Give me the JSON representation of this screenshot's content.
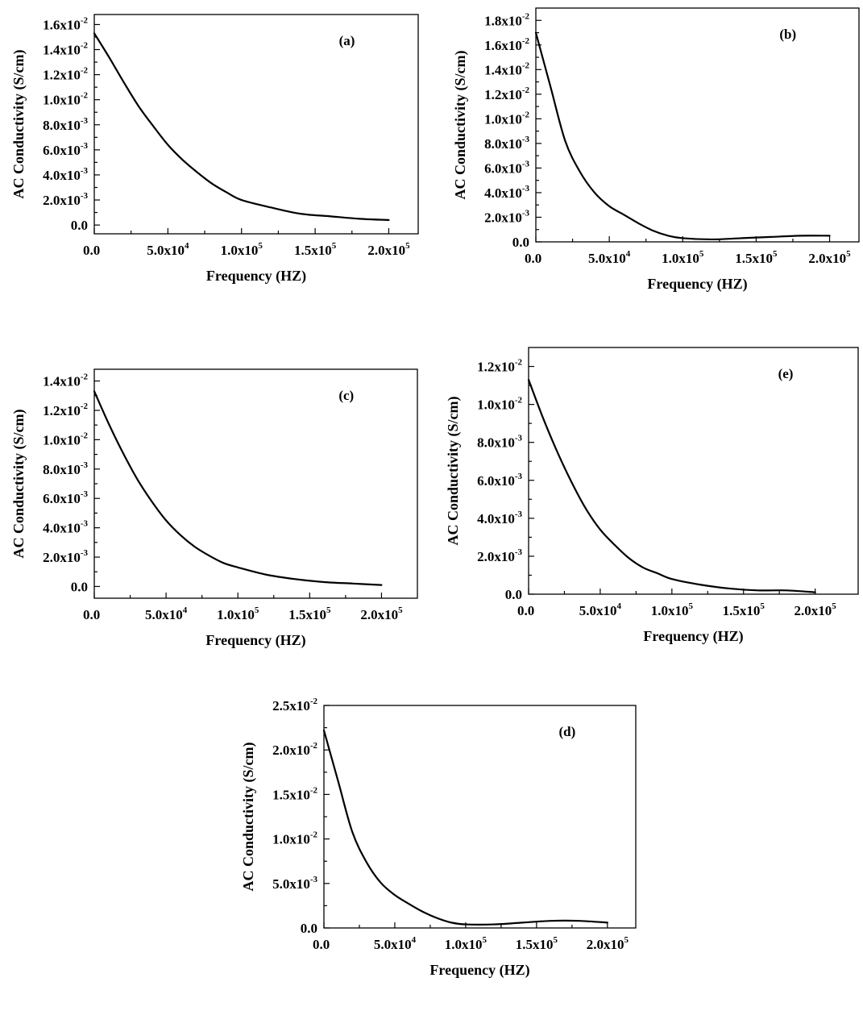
{
  "chart_data": [
    {
      "id": "a",
      "type": "line",
      "label": "(a)",
      "xlabel": "Frequency (HZ)",
      "ylabel": "AC Conductivity (S/cm)",
      "xlim": [
        0,
        220000
      ],
      "ylim": [
        -0.0007,
        0.0168
      ],
      "xticks": [
        {
          "value": 0,
          "mantissa": "0.0",
          "exp": ""
        },
        {
          "value": 50000,
          "mantissa": "5.0x10",
          "exp": "4"
        },
        {
          "value": 100000,
          "mantissa": "1.0x10",
          "exp": "5"
        },
        {
          "value": 150000,
          "mantissa": "1.5x10",
          "exp": "5"
        },
        {
          "value": 200000,
          "mantissa": "2.0x10",
          "exp": "5"
        }
      ],
      "yticks": [
        {
          "value": 0,
          "mantissa": "0.0",
          "exp": ""
        },
        {
          "value": 0.002,
          "mantissa": "2.0x10",
          "exp": "-3"
        },
        {
          "value": 0.004,
          "mantissa": "4.0x10",
          "exp": "-3"
        },
        {
          "value": 0.006,
          "mantissa": "6.0x10",
          "exp": "-3"
        },
        {
          "value": 0.008,
          "mantissa": "8.0x10",
          "exp": "-3"
        },
        {
          "value": 0.01,
          "mantissa": "1.0x10",
          "exp": "-2"
        },
        {
          "value": 0.012,
          "mantissa": "1.2x10",
          "exp": "-2"
        },
        {
          "value": 0.014,
          "mantissa": "1.4x10",
          "exp": "-2"
        },
        {
          "value": 0.016,
          "mantissa": "1.6x10",
          "exp": "-2"
        }
      ],
      "x": [
        0,
        10000,
        20000,
        30000,
        40000,
        50000,
        60000,
        70000,
        80000,
        90000,
        100000,
        120000,
        140000,
        160000,
        180000,
        200000
      ],
      "y": [
        0.0153,
        0.0134,
        0.0114,
        0.0095,
        0.0079,
        0.0064,
        0.0052,
        0.0042,
        0.0033,
        0.0026,
        0.002,
        0.0014,
        0.0009,
        0.0007,
        0.0005,
        0.0004
      ]
    },
    {
      "id": "b",
      "type": "line",
      "label": "(b)",
      "xlabel": "Frequency (HZ)",
      "ylabel": "AC Conductivity (S/cm)",
      "xlim": [
        0,
        220000
      ],
      "ylim": [
        0,
        0.019
      ],
      "xticks": [
        {
          "value": 0,
          "mantissa": "0.0",
          "exp": ""
        },
        {
          "value": 50000,
          "mantissa": "5.0x10",
          "exp": "4"
        },
        {
          "value": 100000,
          "mantissa": "1.0x10",
          "exp": "5"
        },
        {
          "value": 150000,
          "mantissa": "1.5x10",
          "exp": "5"
        },
        {
          "value": 200000,
          "mantissa": "2.0x10",
          "exp": "5"
        }
      ],
      "yticks": [
        {
          "value": 0,
          "mantissa": "0.0",
          "exp": ""
        },
        {
          "value": 0.002,
          "mantissa": "2.0x10",
          "exp": "-3"
        },
        {
          "value": 0.004,
          "mantissa": "4.0x10",
          "exp": "-3"
        },
        {
          "value": 0.006,
          "mantissa": "6.0x10",
          "exp": "-3"
        },
        {
          "value": 0.008,
          "mantissa": "8.0x10",
          "exp": "-3"
        },
        {
          "value": 0.01,
          "mantissa": "1.0x10",
          "exp": "-2"
        },
        {
          "value": 0.012,
          "mantissa": "1.2x10",
          "exp": "-2"
        },
        {
          "value": 0.014,
          "mantissa": "1.4x10",
          "exp": "-2"
        },
        {
          "value": 0.016,
          "mantissa": "1.6x10",
          "exp": "-2"
        },
        {
          "value": 0.018,
          "mantissa": "1.8x10",
          "exp": "-2"
        }
      ],
      "x": [
        0,
        10000,
        20000,
        30000,
        40000,
        50000,
        60000,
        70000,
        80000,
        90000,
        100000,
        120000,
        140000,
        160000,
        180000,
        200000
      ],
      "y": [
        0.017,
        0.0126,
        0.0082,
        0.0057,
        0.004,
        0.0029,
        0.0022,
        0.0015,
        0.0009,
        0.0005,
        0.0003,
        0.0002,
        0.0003,
        0.0004,
        0.0005,
        0.0005
      ]
    },
    {
      "id": "c",
      "type": "line",
      "label": "(c)",
      "xlabel": "Frequency (HZ)",
      "ylabel": "AC Conductivity (S/cm)",
      "xlim": [
        0,
        225000
      ],
      "ylim": [
        -0.0008,
        0.0148
      ],
      "xticks": [
        {
          "value": 0,
          "mantissa": "0.0",
          "exp": ""
        },
        {
          "value": 50000,
          "mantissa": "5.0x10",
          "exp": "4"
        },
        {
          "value": 100000,
          "mantissa": "1.0x10",
          "exp": "5"
        },
        {
          "value": 150000,
          "mantissa": "1.5x10",
          "exp": "5"
        },
        {
          "value": 200000,
          "mantissa": "2.0x10",
          "exp": "5"
        }
      ],
      "yticks": [
        {
          "value": 0,
          "mantissa": "0.0",
          "exp": ""
        },
        {
          "value": 0.002,
          "mantissa": "2.0x10",
          "exp": "-3"
        },
        {
          "value": 0.004,
          "mantissa": "4.0x10",
          "exp": "-3"
        },
        {
          "value": 0.006,
          "mantissa": "6.0x10",
          "exp": "-3"
        },
        {
          "value": 0.008,
          "mantissa": "8.0x10",
          "exp": "-3"
        },
        {
          "value": 0.01,
          "mantissa": "1.0x10",
          "exp": "-2"
        },
        {
          "value": 0.012,
          "mantissa": "1.2x10",
          "exp": "-2"
        },
        {
          "value": 0.014,
          "mantissa": "1.4x10",
          "exp": "-2"
        }
      ],
      "x": [
        0,
        10000,
        20000,
        30000,
        40000,
        50000,
        60000,
        70000,
        80000,
        90000,
        100000,
        120000,
        140000,
        160000,
        180000,
        200000
      ],
      "y": [
        0.0133,
        0.0111,
        0.0091,
        0.0073,
        0.0058,
        0.0045,
        0.0035,
        0.0027,
        0.0021,
        0.0016,
        0.0013,
        0.0008,
        0.0005,
        0.0003,
        0.0002,
        0.0001
      ]
    },
    {
      "id": "e",
      "type": "line",
      "label": "(e)",
      "xlabel": "Frequency (HZ)",
      "ylabel": "AC Conductivity (S/cm)",
      "xlim": [
        0,
        230000
      ],
      "ylim": [
        0,
        0.013
      ],
      "xticks": [
        {
          "value": 0,
          "mantissa": "0.0",
          "exp": ""
        },
        {
          "value": 50000,
          "mantissa": "5.0x10",
          "exp": "4"
        },
        {
          "value": 100000,
          "mantissa": "1.0x10",
          "exp": "5"
        },
        {
          "value": 150000,
          "mantissa": "1.5x10",
          "exp": "5"
        },
        {
          "value": 200000,
          "mantissa": "2.0x10",
          "exp": "5"
        }
      ],
      "yticks": [
        {
          "value": 0,
          "mantissa": "0.0",
          "exp": ""
        },
        {
          "value": 0.002,
          "mantissa": "2.0x10",
          "exp": "-3"
        },
        {
          "value": 0.004,
          "mantissa": "4.0x10",
          "exp": "-3"
        },
        {
          "value": 0.006,
          "mantissa": "6.0x10",
          "exp": "-3"
        },
        {
          "value": 0.008,
          "mantissa": "8.0x10",
          "exp": "-3"
        },
        {
          "value": 0.01,
          "mantissa": "1.0x10",
          "exp": "-2"
        },
        {
          "value": 0.012,
          "mantissa": "1.2x10",
          "exp": "-2"
        }
      ],
      "x": [
        0,
        10000,
        20000,
        30000,
        40000,
        50000,
        60000,
        70000,
        80000,
        90000,
        100000,
        120000,
        140000,
        160000,
        180000,
        200000
      ],
      "y": [
        0.0113,
        0.0093,
        0.0075,
        0.0059,
        0.0045,
        0.0034,
        0.0026,
        0.0019,
        0.0014,
        0.0011,
        0.0008,
        0.0005,
        0.0003,
        0.0002,
        0.0002,
        0.0001
      ]
    },
    {
      "id": "d",
      "type": "line",
      "label": "(d)",
      "xlabel": "Frequency (HZ)",
      "ylabel": "AC Conductivity (S/cm)",
      "xlim": [
        0,
        220000
      ],
      "ylim": [
        0,
        0.025
      ],
      "xticks": [
        {
          "value": 0,
          "mantissa": "0.0",
          "exp": ""
        },
        {
          "value": 50000,
          "mantissa": "5.0x10",
          "exp": "4"
        },
        {
          "value": 100000,
          "mantissa": "1.0x10",
          "exp": "5"
        },
        {
          "value": 150000,
          "mantissa": "1.5x10",
          "exp": "5"
        },
        {
          "value": 200000,
          "mantissa": "2.0x10",
          "exp": "5"
        }
      ],
      "yticks": [
        {
          "value": 0,
          "mantissa": "0.0",
          "exp": ""
        },
        {
          "value": 0.005,
          "mantissa": "5.0x10",
          "exp": "-3"
        },
        {
          "value": 0.01,
          "mantissa": "1.0x10",
          "exp": "-2"
        },
        {
          "value": 0.015,
          "mantissa": "1.5x10",
          "exp": "-2"
        },
        {
          "value": 0.02,
          "mantissa": "2.0x10",
          "exp": "-2"
        },
        {
          "value": 0.025,
          "mantissa": "2.5x10",
          "exp": "-2"
        }
      ],
      "x": [
        0,
        10000,
        20000,
        30000,
        40000,
        50000,
        60000,
        70000,
        80000,
        90000,
        100000,
        120000,
        140000,
        160000,
        180000,
        200000
      ],
      "y": [
        0.0222,
        0.0165,
        0.0108,
        0.0074,
        0.0051,
        0.0037,
        0.0027,
        0.0018,
        0.0011,
        0.0006,
        0.0004,
        0.0004,
        0.0006,
        0.0008,
        0.0008,
        0.0006
      ]
    }
  ]
}
